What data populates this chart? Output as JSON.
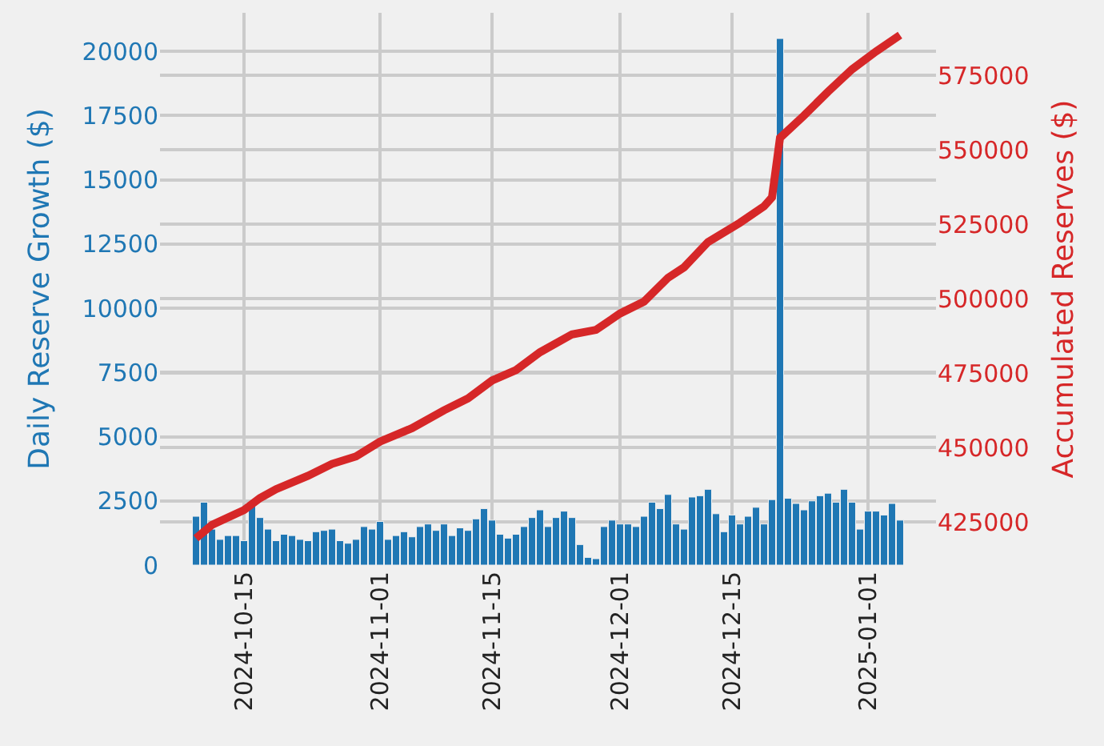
{
  "chart_data": {
    "type": "bar",
    "ylabel": "Daily Reserve Growth ($)",
    "y2label": "Accumulated Reserves ($)",
    "x": [
      "2024-10-09",
      "2024-10-10",
      "2024-10-11",
      "2024-10-12",
      "2024-10-13",
      "2024-10-14",
      "2024-10-15",
      "2024-10-16",
      "2024-10-17",
      "2024-10-18",
      "2024-10-19",
      "2024-10-20",
      "2024-10-21",
      "2024-10-22",
      "2024-10-23",
      "2024-10-24",
      "2024-10-25",
      "2024-10-26",
      "2024-10-27",
      "2024-10-28",
      "2024-10-29",
      "2024-10-30",
      "2024-10-31",
      "2024-11-01",
      "2024-11-02",
      "2024-11-03",
      "2024-11-04",
      "2024-11-05",
      "2024-11-06",
      "2024-11-07",
      "2024-11-08",
      "2024-11-09",
      "2024-11-10",
      "2024-11-11",
      "2024-11-12",
      "2024-11-13",
      "2024-11-14",
      "2024-11-15",
      "2024-11-16",
      "2024-11-17",
      "2024-11-18",
      "2024-11-19",
      "2024-11-20",
      "2024-11-21",
      "2024-11-22",
      "2024-11-23",
      "2024-11-24",
      "2024-11-25",
      "2024-11-26",
      "2024-11-27",
      "2024-11-28",
      "2024-11-29",
      "2024-11-30",
      "2024-12-01",
      "2024-12-02",
      "2024-12-03",
      "2024-12-04",
      "2024-12-05",
      "2024-12-06",
      "2024-12-07",
      "2024-12-08",
      "2024-12-09",
      "2024-12-10",
      "2024-12-11",
      "2024-12-12",
      "2024-12-13",
      "2024-12-14",
      "2024-12-15",
      "2024-12-16",
      "2024-12-17",
      "2024-12-18",
      "2024-12-19",
      "2024-12-20",
      "2024-12-21",
      "2024-12-22",
      "2024-12-23",
      "2024-12-24",
      "2024-12-25",
      "2024-12-26",
      "2024-12-27",
      "2024-12-28",
      "2024-12-29",
      "2024-12-30",
      "2024-12-31",
      "2025-01-01",
      "2025-01-02",
      "2025-01-03",
      "2025-01-04",
      "2025-01-05"
    ],
    "series": [
      {
        "color": "#1f77b4",
        "values": [
          1900,
          2450,
          1400,
          1000,
          1150,
          1150,
          950,
          2400,
          1850,
          1400,
          950,
          1200,
          1150,
          1000,
          950,
          1300,
          1350,
          1400,
          950,
          850,
          1000,
          1500,
          1400,
          1700,
          1000,
          1150,
          1300,
          1100,
          1500,
          1600,
          1350,
          1600,
          1150,
          1450,
          1350,
          1800,
          2200,
          1750,
          1200,
          1050,
          1200,
          1500,
          1850,
          2150,
          1500,
          1850,
          2100,
          1850,
          800,
          300,
          250,
          1500,
          1750,
          1600,
          1600,
          1500,
          1900,
          2450,
          2200,
          2750,
          1600,
          1400,
          2650,
          2700,
          2950,
          2000,
          1300,
          1950,
          1600,
          1900,
          2250,
          1600,
          2550,
          20500,
          2600,
          2400,
          2150,
          2500,
          2700,
          2800,
          2450,
          2950,
          2450,
          1400,
          2100,
          2100,
          1950,
          2400,
          1750
        ]
      },
      {
        "type": "line",
        "axis": "y2",
        "color": "#d62728",
        "x": [
          "2024-10-09",
          "2024-10-11",
          "2024-10-15",
          "2024-10-17",
          "2024-10-19",
          "2024-10-23",
          "2024-10-26",
          "2024-10-29",
          "2024-11-01",
          "2024-11-05",
          "2024-11-09",
          "2024-11-12",
          "2024-11-15",
          "2024-11-18",
          "2024-11-21",
          "2024-11-25",
          "2024-11-28",
          "2024-12-01",
          "2024-12-04",
          "2024-12-07",
          "2024-12-09",
          "2024-12-12",
          "2024-12-16",
          "2024-12-19",
          "2024-12-20",
          "2024-12-21",
          "2024-12-24",
          "2024-12-27",
          "2024-12-30",
          "2025-01-02",
          "2025-01-05"
        ],
        "values": [
          419500,
          424000,
          429000,
          433000,
          436000,
          440500,
          444500,
          447000,
          452000,
          456500,
          462500,
          466500,
          472500,
          476000,
          482000,
          488000,
          489500,
          495000,
          499000,
          507000,
          510500,
          519000,
          525500,
          531000,
          534000,
          554000,
          561500,
          569500,
          577000,
          583000,
          588500
        ]
      }
    ],
    "xlim": [
      "2024-10-04T12:00",
      "2025-01-09T12:00"
    ],
    "xticks": [
      "2024-10-15",
      "2024-11-01",
      "2024-11-15",
      "2024-12-01",
      "2024-12-15",
      "2025-01-01"
    ],
    "ylim": [
      0,
      21500
    ],
    "yticks": [
      0,
      2500,
      5000,
      7500,
      10000,
      12500,
      15000,
      17500,
      20000
    ],
    "y2lim": [
      410500,
      596000
    ],
    "y2ticks": [
      425000,
      450000,
      475000,
      500000,
      525000,
      550000,
      575000
    ],
    "grid": true
  }
}
